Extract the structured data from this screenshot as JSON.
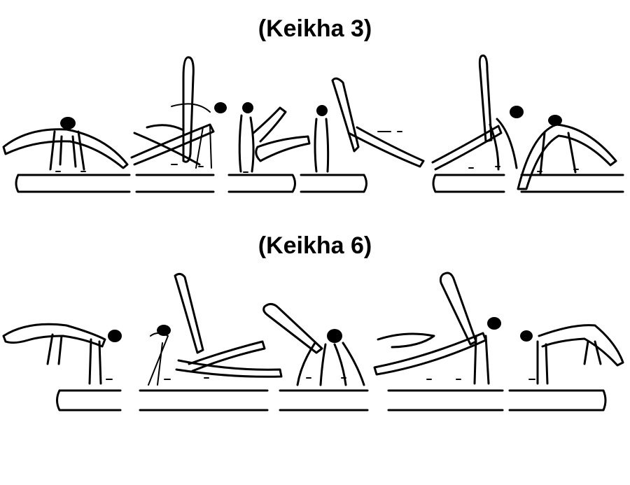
{
  "sequences": [
    {
      "title": "(Keikha 3)"
    },
    {
      "title": "(Keikha 6)"
    }
  ],
  "colors": {
    "ink": "#000000",
    "paper": "#ffffff"
  }
}
